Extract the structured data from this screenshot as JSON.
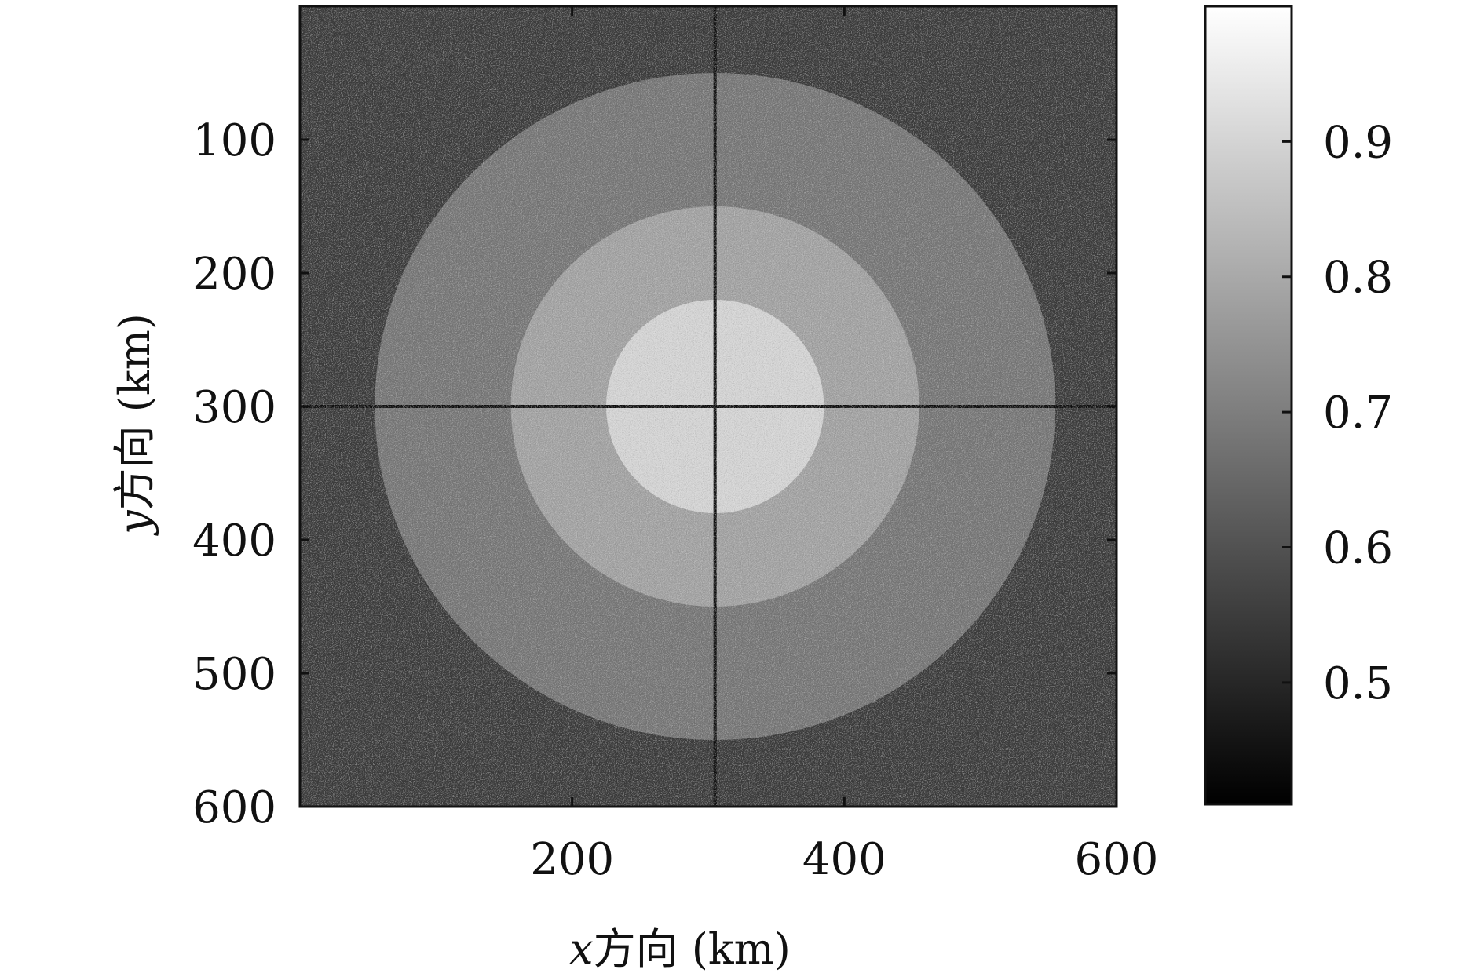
{
  "chart_data": {
    "type": "heatmap",
    "title": "",
    "xlabel_var": "x",
    "xlabel_text": "方向 (km)",
    "ylabel_var": "y",
    "ylabel_text": "方向 (km)",
    "x_ticks": [
      "200",
      "400",
      "600"
    ],
    "y_ticks": [
      "100",
      "200",
      "300",
      "400",
      "500",
      "600"
    ],
    "xlim": [
      0,
      600
    ],
    "ylim": [
      600,
      0
    ],
    "grid": false,
    "colormap": "gray",
    "colorbar": {
      "range": [
        0.41,
        1.0
      ],
      "ticks": [
        "0.5",
        "0.6",
        "0.7",
        "0.8",
        "0.9"
      ]
    },
    "field": {
      "center_km": [
        305,
        300
      ],
      "rings": [
        {
          "outer_radius_km": 250,
          "value": 0.69
        },
        {
          "outer_radius_km": 150,
          "value": 0.79
        },
        {
          "outer_radius_km": 80,
          "value": 0.9
        }
      ],
      "background_value": 0.55,
      "crosshair_value": 0.43,
      "noise": "random speckle"
    }
  }
}
